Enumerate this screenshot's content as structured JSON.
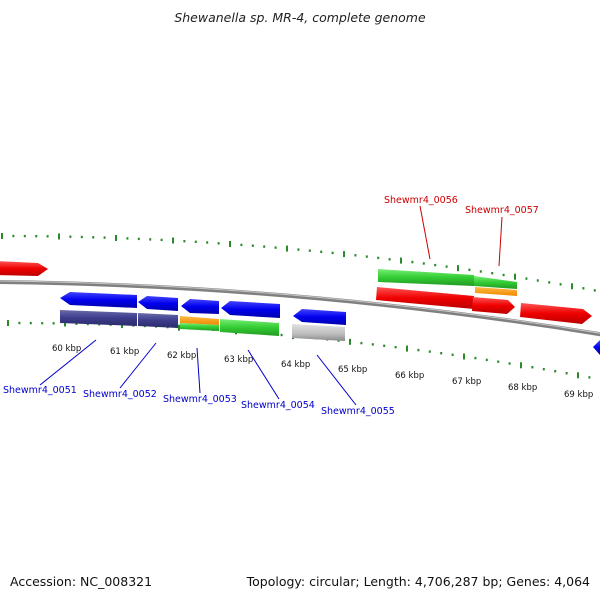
{
  "title": "Shewanella sp. MR-4, complete genome",
  "footer": {
    "accession": "Accession: NC_008321",
    "topology": "Topology: circular; Length: 4,706,287 bp; Genes: 4,064"
  },
  "axis": {
    "unit_labels": [
      "60 kbp",
      "61 kbp",
      "62 kbp",
      "63 kbp",
      "64 kbp",
      "65 kbp",
      "66 kbp",
      "67 kbp",
      "68 kbp",
      "69 kbp"
    ]
  },
  "colors": {
    "forward": "#ff0000",
    "reverse": "#0000ff",
    "rna": "#33cc33",
    "orange": "#ff9900",
    "purple": "#3c3c8c",
    "gray": "#bbbbbb",
    "ticks": "#2a8a2a",
    "backbone": "#808080"
  },
  "gene_labels": [
    {
      "text": "Shewmr4_0051",
      "strand": "reverse"
    },
    {
      "text": "Shewmr4_0052",
      "strand": "reverse"
    },
    {
      "text": "Shewmr4_0053",
      "strand": "reverse"
    },
    {
      "text": "Shewmr4_0054",
      "strand": "reverse"
    },
    {
      "text": "Shewmr4_0055",
      "strand": "reverse"
    },
    {
      "text": "Shewmr4_0056",
      "strand": "forward"
    },
    {
      "text": "Shewmr4_0057",
      "strand": "forward"
    }
  ]
}
